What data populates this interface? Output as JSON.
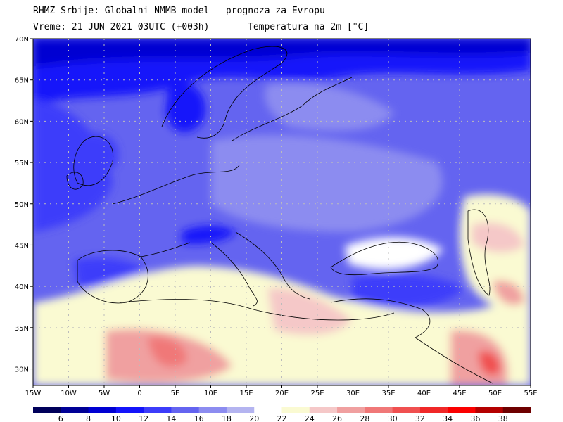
{
  "header": {
    "line1": "RHMZ Srbije: Globalni NMMB model — prognoza za Evropu",
    "valid_label": "Vreme: 21 JUN 2021 03UTC (+003h)",
    "field_label": "Temperatura na 2m [°C]"
  },
  "map": {
    "lon_ticks": [
      "15W",
      "10W",
      "5W",
      "0",
      "5E",
      "10E",
      "15E",
      "20E",
      "25E",
      "30E",
      "35E",
      "40E",
      "45E",
      "50E",
      "55E"
    ],
    "lat_ticks": [
      "70N",
      "65N",
      "60N",
      "55N",
      "50N",
      "45N",
      "40N",
      "35N",
      "30N"
    ],
    "extent": {
      "lon": [
        -15,
        55
      ],
      "lat": [
        28,
        70
      ]
    }
  },
  "colorbar": {
    "labels": [
      "6",
      "8",
      "10",
      "12",
      "14",
      "16",
      "18",
      "20",
      "22",
      "24",
      "26",
      "28",
      "30",
      "32",
      "34",
      "36",
      "38"
    ],
    "colors": [
      "#00005a",
      "#000096",
      "#0000d2",
      "#1414fa",
      "#3c3cfa",
      "#6464f0",
      "#8c8cf0",
      "#b4b4f0",
      "#ffffff",
      "#fafad2",
      "#f5c8c8",
      "#f0a0a0",
      "#f07878",
      "#f05050",
      "#f02828",
      "#fa0000",
      "#b40000",
      "#6e0000"
    ]
  },
  "legend_colors": {
    "cold": "#1414fa",
    "cool": "#6464f0",
    "mild": "#b4b4f0",
    "neutral": "#ffffff",
    "warm": "#fafad2",
    "hot": "#f0a0a0",
    "very_hot": "#f05050"
  }
}
